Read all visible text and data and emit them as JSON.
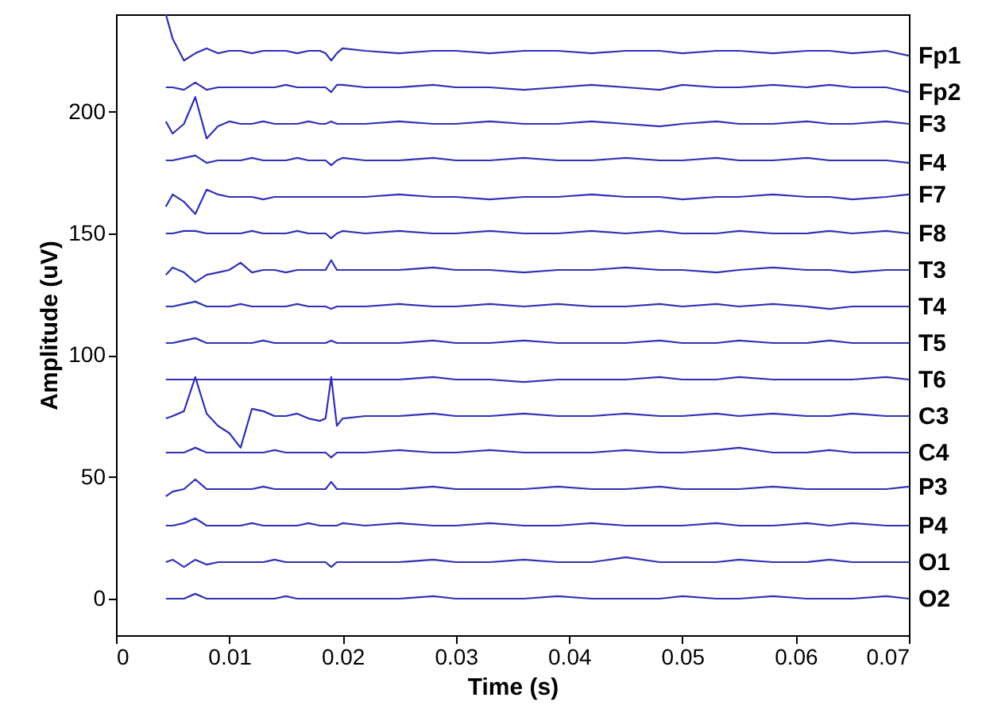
{
  "chart_data": {
    "type": "line",
    "xlabel": "Time (s)",
    "ylabel": "Amplitude (uV)",
    "xlim": [
      0,
      0.07
    ],
    "xticks": [
      0,
      0.01,
      0.02,
      0.03,
      0.04,
      0.05,
      0.06,
      0.07
    ],
    "ylim": [
      -15,
      240
    ],
    "yticks": [
      0,
      50,
      100,
      150,
      200
    ],
    "x": [
      0.0044,
      0.005,
      0.006,
      0.007,
      0.008,
      0.009,
      0.01,
      0.011,
      0.012,
      0.013,
      0.014,
      0.015,
      0.016,
      0.017,
      0.018,
      0.0185,
      0.019,
      0.0195,
      0.02,
      0.022,
      0.025,
      0.028,
      0.03,
      0.033,
      0.036,
      0.039,
      0.042,
      0.045,
      0.048,
      0.05,
      0.053,
      0.055,
      0.058,
      0.061,
      0.063,
      0.065,
      0.068,
      0.07
    ],
    "series": [
      {
        "name": "Fp1",
        "color": "#3030b8",
        "values": [
          240,
          230,
          221,
          224,
          226,
          224,
          225,
          225,
          224,
          225,
          225,
          225,
          224,
          225,
          225,
          224,
          221,
          224,
          226,
          225,
          224,
          225,
          225,
          224,
          225,
          225,
          224,
          225,
          225,
          224,
          225,
          225,
          224,
          225,
          225,
          224,
          225,
          223
        ]
      },
      {
        "name": "Fp2",
        "color": "#3030b8",
        "values": [
          210,
          210,
          209,
          212,
          209,
          210,
          210,
          210,
          210,
          210,
          210,
          211,
          210,
          210,
          210,
          210,
          208,
          211,
          211,
          210,
          210,
          211,
          210,
          210,
          209,
          210,
          211,
          210,
          209,
          211,
          210,
          210,
          211,
          210,
          211,
          210,
          210,
          208
        ]
      },
      {
        "name": "F3",
        "color": "#3030b8",
        "values": [
          196,
          191,
          195,
          206,
          189,
          194,
          196,
          195,
          195,
          196,
          195,
          195,
          195,
          196,
          195,
          195,
          196,
          195,
          195,
          195,
          196,
          195,
          195,
          196,
          195,
          195,
          196,
          195,
          194,
          195,
          196,
          195,
          195,
          196,
          195,
          195,
          196,
          195
        ]
      },
      {
        "name": "F4",
        "color": "#3030b8",
        "values": [
          180,
          180,
          181,
          182,
          179,
          180,
          180,
          180,
          181,
          180,
          180,
          180,
          181,
          180,
          180,
          180,
          178,
          180,
          181,
          180,
          180,
          181,
          180,
          180,
          181,
          180,
          180,
          181,
          180,
          180,
          181,
          180,
          180,
          181,
          180,
          180,
          180,
          179
        ]
      },
      {
        "name": "F7",
        "color": "#3030b8",
        "values": [
          161,
          166,
          163,
          158,
          168,
          166,
          165,
          165,
          165,
          164,
          165,
          165,
          165,
          165,
          165,
          165,
          165,
          165,
          165,
          165,
          166,
          165,
          165,
          164,
          165,
          165,
          166,
          165,
          165,
          164,
          165,
          165,
          166,
          165,
          165,
          164,
          165,
          166
        ]
      },
      {
        "name": "F8",
        "color": "#3030b8",
        "values": [
          150,
          150,
          151,
          151,
          150,
          150,
          150,
          150,
          151,
          150,
          150,
          150,
          151,
          150,
          150,
          150,
          148,
          150,
          151,
          150,
          151,
          150,
          150,
          151,
          150,
          150,
          151,
          150,
          151,
          150,
          150,
          151,
          150,
          150,
          151,
          150,
          151,
          150
        ]
      },
      {
        "name": "T3",
        "color": "#3030b8",
        "values": [
          133,
          136,
          134,
          130,
          133,
          134,
          135,
          138,
          134,
          135,
          135,
          134,
          135,
          135,
          135,
          135,
          139,
          135,
          135,
          135,
          135,
          136,
          135,
          135,
          134,
          135,
          135,
          136,
          135,
          135,
          134,
          135,
          136,
          135,
          135,
          134,
          135,
          135
        ]
      },
      {
        "name": "T4",
        "color": "#3030b8",
        "values": [
          120,
          120,
          121,
          122,
          120,
          120,
          120,
          121,
          120,
          120,
          120,
          120,
          121,
          120,
          120,
          120,
          119,
          120,
          120,
          120,
          121,
          120,
          120,
          121,
          120,
          121,
          120,
          120,
          121,
          120,
          121,
          120,
          121,
          120,
          119,
          120,
          120,
          120
        ]
      },
      {
        "name": "T5",
        "color": "#3030b8",
        "values": [
          105,
          105,
          106,
          107,
          105,
          105,
          105,
          105,
          105,
          106,
          105,
          105,
          105,
          105,
          105,
          105,
          106,
          105,
          105,
          105,
          105,
          106,
          105,
          105,
          106,
          105,
          105,
          105,
          106,
          105,
          105,
          106,
          105,
          105,
          106,
          105,
          105,
          105
        ]
      },
      {
        "name": "T6",
        "color": "#3030b8",
        "values": [
          90,
          90,
          90,
          90,
          90,
          90,
          90,
          90,
          90,
          90,
          90,
          90,
          90,
          90,
          90,
          90,
          90,
          90,
          90,
          90,
          90,
          91,
          90,
          90,
          89,
          90,
          90,
          90,
          91,
          90,
          90,
          91,
          90,
          90,
          90,
          90,
          91,
          90
        ]
      },
      {
        "name": "C3",
        "color": "#3030b8",
        "values": [
          74,
          75,
          77,
          91,
          76,
          71,
          68,
          62,
          78,
          77,
          75,
          75,
          76,
          74,
          73,
          74,
          91,
          71,
          74,
          75,
          75,
          76,
          75,
          75,
          76,
          75,
          75,
          76,
          75,
          75,
          76,
          75,
          76,
          75,
          75,
          76,
          75,
          75
        ]
      },
      {
        "name": "C4",
        "color": "#3030b8",
        "values": [
          60,
          60,
          60,
          62,
          60,
          60,
          60,
          60,
          60,
          60,
          61,
          60,
          60,
          60,
          60,
          60,
          58,
          60,
          60,
          60,
          61,
          60,
          60,
          61,
          60,
          60,
          60,
          61,
          60,
          60,
          61,
          62,
          60,
          60,
          61,
          60,
          60,
          60
        ]
      },
      {
        "name": "P3",
        "color": "#3030b8",
        "values": [
          42,
          44,
          45,
          49,
          45,
          45,
          45,
          45,
          45,
          46,
          45,
          45,
          45,
          45,
          45,
          45,
          48,
          45,
          45,
          45,
          45,
          46,
          45,
          45,
          45,
          46,
          45,
          45,
          46,
          45,
          45,
          45,
          46,
          45,
          45,
          45,
          45,
          46
        ]
      },
      {
        "name": "P4",
        "color": "#3030b8",
        "values": [
          30,
          30,
          31,
          33,
          30,
          30,
          30,
          30,
          31,
          30,
          30,
          30,
          30,
          31,
          30,
          30,
          30,
          30,
          31,
          30,
          31,
          30,
          30,
          31,
          30,
          30,
          31,
          30,
          30,
          30,
          31,
          30,
          30,
          31,
          30,
          31,
          30,
          30
        ]
      },
      {
        "name": "O1",
        "color": "#3030b8",
        "values": [
          15,
          16,
          13,
          16,
          14,
          15,
          15,
          15,
          15,
          15,
          16,
          15,
          15,
          15,
          15,
          15,
          13,
          15,
          15,
          15,
          15,
          16,
          15,
          15,
          16,
          15,
          15,
          17,
          15,
          15,
          15,
          16,
          15,
          15,
          16,
          15,
          15,
          15
        ]
      },
      {
        "name": "O2",
        "color": "#3030b8",
        "values": [
          0,
          0,
          0,
          2,
          0,
          0,
          0,
          0,
          0,
          0,
          0,
          1,
          0,
          0,
          0,
          0,
          0,
          0,
          0,
          0,
          0,
          1,
          0,
          0,
          0,
          1,
          0,
          0,
          0,
          1,
          0,
          0,
          1,
          0,
          0,
          0,
          1,
          0
        ]
      }
    ]
  }
}
